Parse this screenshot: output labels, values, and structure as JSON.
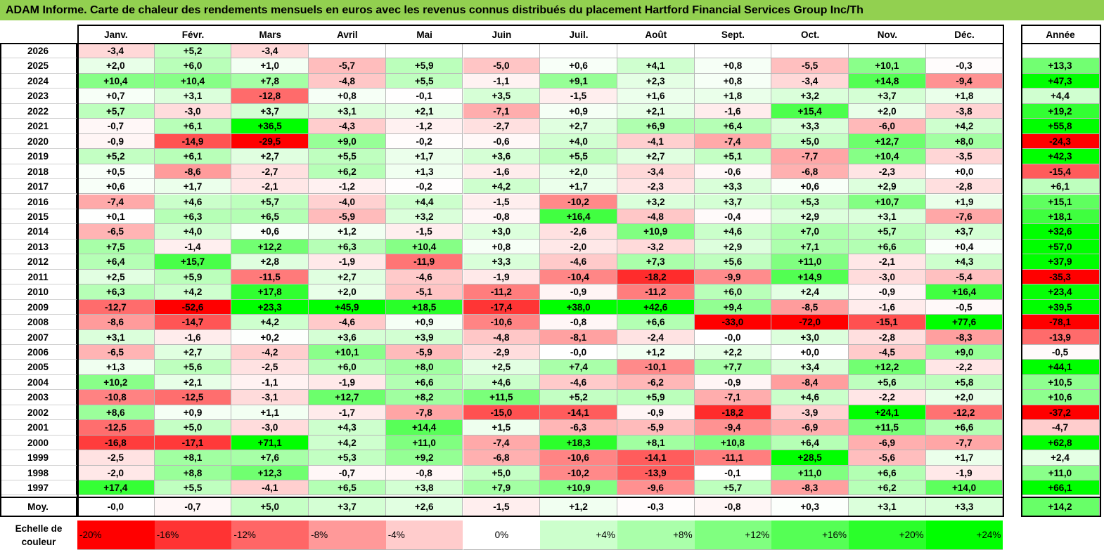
{
  "title": "ADAM Informe. Carte de chaleur des rendements mensuels en euros avec les revenus connus distribués du placement Hartford Financial Services Group Inc/Th",
  "chart_data": {
    "type": "heatmap",
    "title": "ADAM Informe. Carte de chaleur des rendements mensuels en euros avec les revenus connus distribués du placement Hartford Financial Services Group Inc/Th",
    "months": [
      "Janv.",
      "Févr.",
      "Mars",
      "Avril",
      "Mai",
      "Juin",
      "Juil.",
      "Août",
      "Sept.",
      "Oct.",
      "Nov.",
      "Déc."
    ],
    "year_col_label": "Année",
    "avg_label": "Moy.",
    "rows": [
      {
        "year": "2026",
        "values": [
          "-3,4",
          "+5,2",
          "-3,4",
          "",
          "",
          "",
          "",
          "",
          "",
          "",
          "",
          ""
        ],
        "annual": ""
      },
      {
        "year": "2025",
        "values": [
          "+2,0",
          "+6,0",
          "+1,0",
          "-5,7",
          "+5,9",
          "-5,0",
          "+0,6",
          "+4,1",
          "+0,8",
          "-5,5",
          "+10,1",
          "-0,3"
        ],
        "annual": "+13,3"
      },
      {
        "year": "2024",
        "values": [
          "+10,4",
          "+10,4",
          "+7,8",
          "-4,8",
          "+5,5",
          "-1,1",
          "+9,1",
          "+2,3",
          "+0,8",
          "-3,4",
          "+14,8",
          "-9,4"
        ],
        "annual": "+47,3"
      },
      {
        "year": "2023",
        "values": [
          "+0,7",
          "+3,1",
          "-12,8",
          "+0,8",
          "-0,1",
          "+3,5",
          "-1,5",
          "+1,6",
          "+1,8",
          "+3,2",
          "+3,7",
          "+1,8"
        ],
        "annual": "+4,4"
      },
      {
        "year": "2022",
        "values": [
          "+5,7",
          "-3,0",
          "+3,7",
          "+3,1",
          "+2,1",
          "-7,1",
          "+0,9",
          "+2,1",
          "-1,6",
          "+15,4",
          "+2,0",
          "-3,8"
        ],
        "annual": "+19,2"
      },
      {
        "year": "2021",
        "values": [
          "-0,7",
          "+6,1",
          "+36,5",
          "-4,3",
          "-1,2",
          "-2,7",
          "+2,7",
          "+6,9",
          "+6,4",
          "+3,3",
          "-6,0",
          "+4,2"
        ],
        "annual": "+55,8"
      },
      {
        "year": "2020",
        "values": [
          "-0,9",
          "-14,9",
          "-29,5",
          "+9,0",
          "-0,2",
          "-0,6",
          "+4,0",
          "-4,1",
          "-7,4",
          "+5,0",
          "+12,7",
          "+8,0"
        ],
        "annual": "-24,3"
      },
      {
        "year": "2019",
        "values": [
          "+5,2",
          "+6,1",
          "+2,7",
          "+5,5",
          "+1,7",
          "+3,6",
          "+5,5",
          "+2,7",
          "+5,1",
          "-7,7",
          "+10,4",
          "-3,5"
        ],
        "annual": "+42,3"
      },
      {
        "year": "2018",
        "values": [
          "+0,5",
          "-8,6",
          "-2,7",
          "+6,2",
          "+1,3",
          "-1,6",
          "+2,0",
          "-3,4",
          "-0,6",
          "-6,8",
          "-2,3",
          "+0,0"
        ],
        "annual": "-15,4"
      },
      {
        "year": "2017",
        "values": [
          "+0,6",
          "+1,7",
          "-2,1",
          "-1,2",
          "-0,2",
          "+4,2",
          "+1,7",
          "-2,3",
          "+3,3",
          "+0,6",
          "+2,9",
          "-2,8"
        ],
        "annual": "+6,1"
      },
      {
        "year": "2016",
        "values": [
          "-7,4",
          "+4,6",
          "+5,7",
          "-4,0",
          "+4,4",
          "-1,5",
          "-10,2",
          "+3,2",
          "+3,7",
          "+5,3",
          "+10,7",
          "+1,9"
        ],
        "annual": "+15,1"
      },
      {
        "year": "2015",
        "values": [
          "+0,1",
          "+6,3",
          "+6,5",
          "-5,9",
          "+3,2",
          "-0,8",
          "+16,4",
          "-4,8",
          "-0,4",
          "+2,9",
          "+3,1",
          "-7,6"
        ],
        "annual": "+18,1"
      },
      {
        "year": "2014",
        "values": [
          "-6,5",
          "+4,0",
          "+0,6",
          "+1,2",
          "-1,5",
          "+3,0",
          "-2,6",
          "+10,9",
          "+4,6",
          "+7,0",
          "+5,7",
          "+3,7"
        ],
        "annual": "+32,6"
      },
      {
        "year": "2013",
        "values": [
          "+7,5",
          "-1,4",
          "+12,2",
          "+6,3",
          "+10,4",
          "+0,8",
          "-2,0",
          "-3,2",
          "+2,9",
          "+7,1",
          "+6,6",
          "+0,4"
        ],
        "annual": "+57,0"
      },
      {
        "year": "2012",
        "values": [
          "+6,4",
          "+15,7",
          "+2,8",
          "-1,9",
          "-11,9",
          "+3,3",
          "-4,6",
          "+7,3",
          "+5,6",
          "+11,0",
          "-2,1",
          "+4,3"
        ],
        "annual": "+37,9"
      },
      {
        "year": "2011",
        "values": [
          "+2,5",
          "+5,9",
          "-11,5",
          "+2,7",
          "-4,6",
          "-1,9",
          "-10,4",
          "-18,2",
          "-9,9",
          "+14,9",
          "-3,0",
          "-5,4"
        ],
        "annual": "-35,3"
      },
      {
        "year": "2010",
        "values": [
          "+6,3",
          "+4,2",
          "+17,8",
          "+2,0",
          "-5,1",
          "-11,2",
          "-0,9",
          "-11,2",
          "+6,0",
          "+2,4",
          "-0,9",
          "+16,4"
        ],
        "annual": "+23,4"
      },
      {
        "year": "2009",
        "values": [
          "-12,7",
          "-52,6",
          "+23,3",
          "+45,9",
          "+18,5",
          "-17,4",
          "+38,0",
          "+42,6",
          "+9,4",
          "-8,5",
          "-1,6",
          "-0,5"
        ],
        "annual": "+39,5"
      },
      {
        "year": "2008",
        "values": [
          "-8,6",
          "-14,7",
          "+4,2",
          "-4,6",
          "+0,9",
          "-10,6",
          "-0,8",
          "+6,6",
          "-33,0",
          "-72,0",
          "-15,1",
          "+77,6"
        ],
        "annual": "-78,1"
      },
      {
        "year": "2007",
        "values": [
          "+3,1",
          "-1,6",
          "+0,2",
          "+3,6",
          "+3,9",
          "-4,8",
          "-8,1",
          "-2,4",
          "-0,0",
          "+3,0",
          "-2,8",
          "-8,3"
        ],
        "annual": "-13,9"
      },
      {
        "year": "2006",
        "values": [
          "-6,5",
          "+2,7",
          "-4,2",
          "+10,1",
          "-5,9",
          "-2,9",
          "-0,0",
          "+1,2",
          "+2,2",
          "+0,0",
          "-4,5",
          "+9,0"
        ],
        "annual": "-0,5"
      },
      {
        "year": "2005",
        "values": [
          "+1,3",
          "+5,6",
          "-2,5",
          "+6,0",
          "+8,0",
          "+2,5",
          "+7,4",
          "-10,1",
          "+7,7",
          "+3,4",
          "+12,2",
          "-2,2"
        ],
        "annual": "+44,1"
      },
      {
        "year": "2004",
        "values": [
          "+10,2",
          "+2,1",
          "-1,1",
          "-1,9",
          "+6,6",
          "+4,6",
          "-4,6",
          "-6,2",
          "-0,9",
          "-8,4",
          "+5,6",
          "+5,8"
        ],
        "annual": "+10,5"
      },
      {
        "year": "2003",
        "values": [
          "-10,8",
          "-12,5",
          "-3,1",
          "+12,7",
          "+8,2",
          "+11,5",
          "+5,2",
          "+5,9",
          "-7,1",
          "+4,6",
          "-2,2",
          "+2,0"
        ],
        "annual": "+10,6"
      },
      {
        "year": "2002",
        "values": [
          "+8,6",
          "+0,9",
          "+1,1",
          "-1,7",
          "-7,8",
          "-15,0",
          "-14,1",
          "-0,9",
          "-18,2",
          "-3,9",
          "+24,1",
          "-12,2"
        ],
        "annual": "-37,2"
      },
      {
        "year": "2001",
        "values": [
          "-12,5",
          "+5,0",
          "-3,0",
          "+4,3",
          "+14,4",
          "+1,5",
          "-6,3",
          "-5,9",
          "-9,4",
          "-6,9",
          "+11,5",
          "+6,6"
        ],
        "annual": "-4,7"
      },
      {
        "year": "2000",
        "values": [
          "-16,8",
          "-17,1",
          "+71,1",
          "+4,2",
          "+11,0",
          "-7,4",
          "+18,3",
          "+8,1",
          "+10,8",
          "+6,4",
          "-6,9",
          "-7,7"
        ],
        "annual": "+62,8"
      },
      {
        "year": "1999",
        "values": [
          "-2,5",
          "+8,1",
          "+7,6",
          "+5,3",
          "+9,2",
          "-6,8",
          "-10,6",
          "-14,1",
          "-11,1",
          "+28,5",
          "-5,6",
          "+1,7"
        ],
        "annual": "+2,4"
      },
      {
        "year": "1998",
        "values": [
          "-2,0",
          "+8,8",
          "+12,3",
          "-0,7",
          "-0,8",
          "+5,0",
          "-10,2",
          "-13,9",
          "-0,1",
          "+11,0",
          "+6,6",
          "-1,9"
        ],
        "annual": "+11,0"
      },
      {
        "year": "1997",
        "values": [
          "+17,4",
          "+5,5",
          "-4,1",
          "+6,5",
          "+3,8",
          "+7,9",
          "+10,9",
          "-9,6",
          "+5,7",
          "-8,3",
          "+6,2",
          "+14,0"
        ],
        "annual": "+66,1"
      }
    ],
    "averages": [
      "-0,0",
      "-0,7",
      "+5,0",
      "+3,7",
      "+2,6",
      "-1,5",
      "+1,2",
      "-0,3",
      "-0,8",
      "+0,3",
      "+3,1",
      "+3,3"
    ],
    "average_annual": "+14,2",
    "legend_title": "Echelle de couleur",
    "legend": [
      {
        "label": "-20%",
        "color": "#ff0000"
      },
      {
        "label": "-16%",
        "color": "#ff3333"
      },
      {
        "label": "-12%",
        "color": "#ff6666"
      },
      {
        "label": "-8%",
        "color": "#ff9999"
      },
      {
        "label": "-4%",
        "color": "#ffcccc"
      },
      {
        "label": "0%",
        "color": "#ffffff"
      },
      {
        "label": "+4%",
        "color": "#ccffcc"
      },
      {
        "label": "+8%",
        "color": "#aaffaa"
      },
      {
        "label": "+12%",
        "color": "#80ff80"
      },
      {
        "label": "+16%",
        "color": "#55ff55"
      },
      {
        "label": "+20%",
        "color": "#2aff2a"
      },
      {
        "label": "+24%",
        "color": "#00ff00"
      }
    ]
  }
}
